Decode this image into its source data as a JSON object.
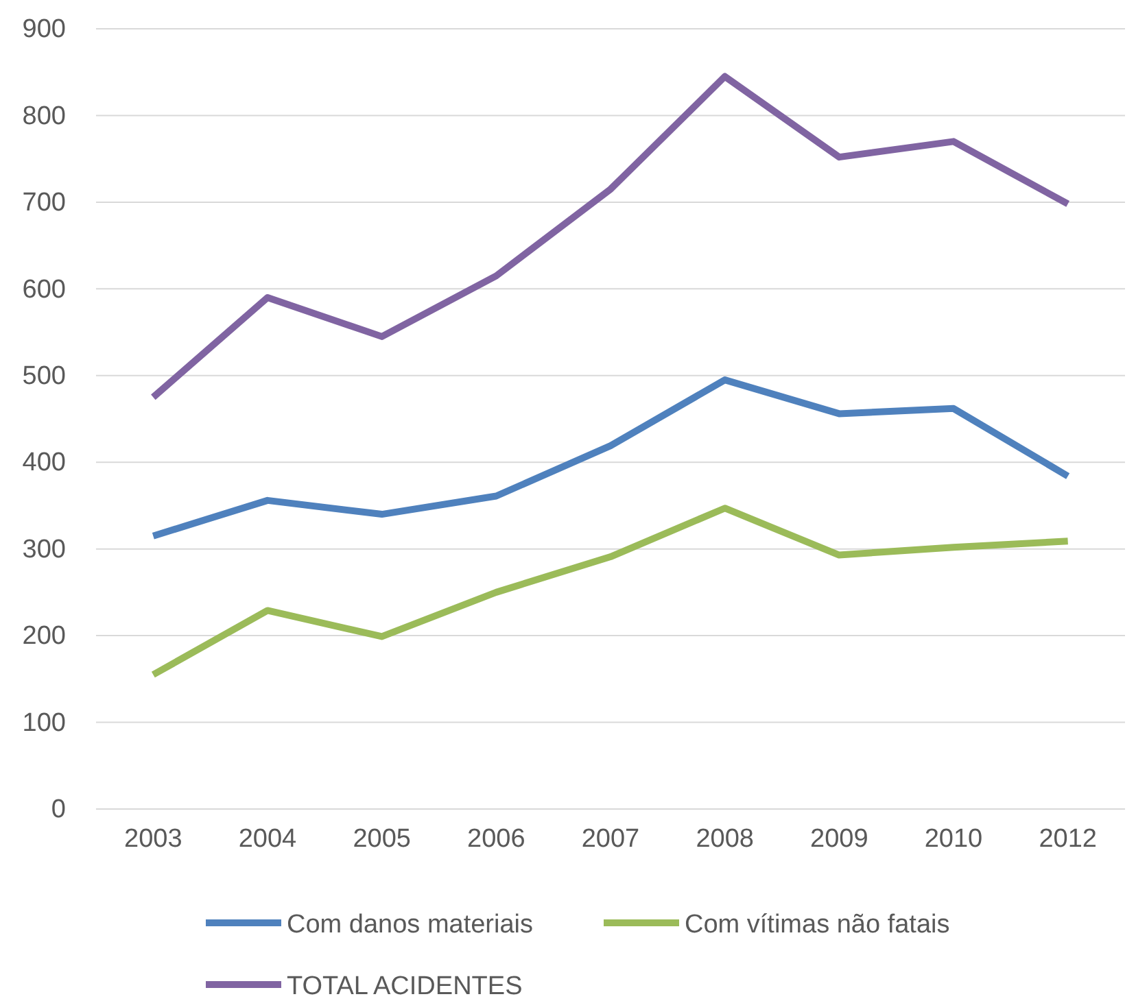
{
  "chart_data": {
    "type": "line",
    "categories": [
      "2003",
      "2004",
      "2005",
      "2006",
      "2007",
      "2008",
      "2009",
      "2010",
      "2012"
    ],
    "series": [
      {
        "name": "Com danos materiais",
        "color": "#4f81bd",
        "values": [
          315,
          356,
          340,
          361,
          419,
          495,
          456,
          462,
          384
        ]
      },
      {
        "name": "Com vítimas não fatais",
        "color": "#9bbb59",
        "values": [
          155,
          229,
          199,
          250,
          291,
          347,
          293,
          302,
          309
        ]
      },
      {
        "name": "TOTAL ACIDENTES",
        "color": "#8064a2",
        "values": [
          475,
          590,
          545,
          615,
          715,
          845,
          752,
          770,
          698
        ]
      }
    ],
    "ylim": [
      0,
      900
    ],
    "yticks": [
      0,
      100,
      200,
      300,
      400,
      500,
      600,
      700,
      800,
      900
    ],
    "grid": "y",
    "legend": "bottom",
    "marker": "none",
    "line_style": "solid"
  }
}
